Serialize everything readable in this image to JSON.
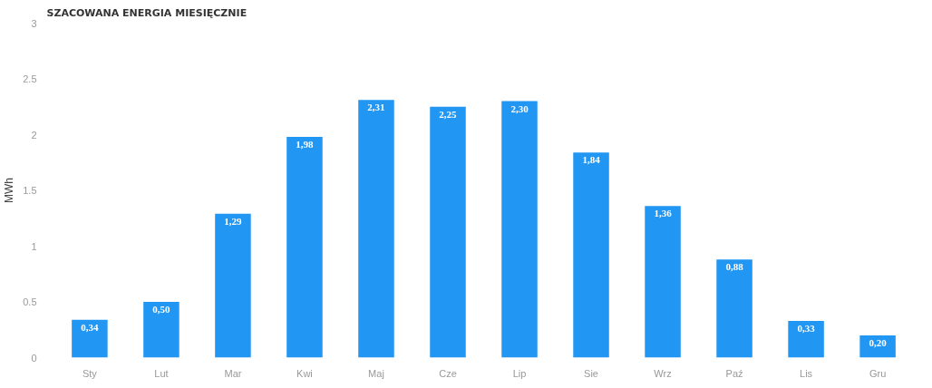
{
  "chart_data": {
    "type": "bar",
    "title": "SZACOWANA ENERGIA MIESIĘCZNIE",
    "ylabel": "MWh",
    "categories": [
      "Sty",
      "Lut",
      "Mar",
      "Kwi",
      "Maj",
      "Cze",
      "Lip",
      "Sie",
      "Wrz",
      "Paź",
      "Lis",
      "Gru"
    ],
    "values": [
      0.34,
      0.5,
      1.29,
      1.98,
      2.31,
      2.25,
      2.3,
      1.84,
      1.36,
      0.88,
      0.33,
      0.2
    ],
    "value_labels": [
      "0,34",
      "0,50",
      "1,29",
      "1,98",
      "2,31",
      "2,25",
      "2,30",
      "1,84",
      "1,36",
      "0,88",
      "0,33",
      "0,20"
    ],
    "color": "#2196f3",
    "ylim": [
      0,
      3
    ],
    "yticks": [
      0,
      0.5,
      1,
      1.5,
      2,
      2.5,
      3
    ],
    "grid": false
  }
}
